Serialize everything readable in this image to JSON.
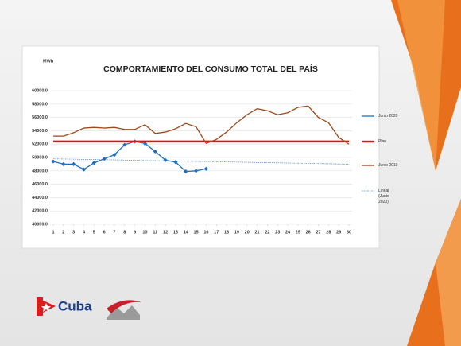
{
  "chart_data": {
    "type": "line",
    "title": "COMPORTAMIENTO DEL CONSUMO TOTAL DEL PAÍS",
    "ylabel": "MWh",
    "x": [
      1,
      2,
      3,
      4,
      5,
      6,
      7,
      8,
      9,
      10,
      11,
      12,
      13,
      14,
      15,
      16,
      17,
      18,
      19,
      20,
      21,
      22,
      23,
      24,
      25,
      26,
      27,
      28,
      29,
      30
    ],
    "xlim": [
      1,
      30
    ],
    "xticks": [
      1,
      2,
      3,
      4,
      5,
      6,
      7,
      8,
      9,
      10,
      11,
      12,
      13,
      14,
      15,
      16,
      17,
      18,
      19,
      20,
      21,
      22,
      23,
      24,
      25,
      26,
      27,
      28,
      29,
      30
    ],
    "ylim": [
      40000,
      60000
    ],
    "yticks": [
      {
        "value": 40000,
        "label": "40000,0"
      },
      {
        "value": 42000,
        "label": "42000,0"
      },
      {
        "value": 44000,
        "label": "44000,0"
      },
      {
        "value": 46000,
        "label": "46000,0"
      },
      {
        "value": 48000,
        "label": "48000,0"
      },
      {
        "value": 50000,
        "label": "50000,0"
      },
      {
        "value": 52000,
        "label": "52000,0"
      },
      {
        "value": 54000,
        "label": "54000,0"
      },
      {
        "value": 56000,
        "label": "56000,0"
      },
      {
        "value": 58000,
        "label": "58000,0"
      },
      {
        "value": 60000,
        "label": "60000,0"
      }
    ],
    "grid": true,
    "legend": "right",
    "series": [
      {
        "name": "Junio 2020",
        "color": "#1f6fc0",
        "markers": true,
        "values": [
          49400,
          49000,
          49000,
          48200,
          49200,
          49800,
          50400,
          51900,
          52400,
          52100,
          50900,
          49600,
          49300,
          47900,
          48000,
          48300,
          null,
          null,
          null,
          null,
          null,
          null,
          null,
          null,
          null,
          null,
          null,
          null,
          null,
          null
        ]
      },
      {
        "name": "Plan",
        "color": "#e0140f",
        "values": [
          52400,
          52400,
          52400,
          52400,
          52400,
          52400,
          52400,
          52400,
          52400,
          52400,
          52400,
          52400,
          52400,
          52400,
          52400,
          52400,
          52400,
          52400,
          52400,
          52400,
          52400,
          52400,
          52400,
          52400,
          52400,
          52400,
          52400,
          52400,
          52400,
          52400
        ]
      },
      {
        "name": "Junio 2019",
        "color": "#9c4a1a",
        "values": [
          53200,
          53200,
          53700,
          54400,
          54500,
          54400,
          54500,
          54200,
          54200,
          54900,
          53600,
          53800,
          54300,
          55100,
          54600,
          52100,
          52700,
          53800,
          55200,
          56400,
          57300,
          57000,
          56400,
          56700,
          57500,
          57700,
          56000,
          55200,
          53000,
          52000
        ]
      },
      {
        "name": "Lineal (Junio 2020)",
        "color": "#4a86c8",
        "dashed": true,
        "x": [
          1,
          30
        ],
        "values": [
          49800,
          49000
        ]
      }
    ]
  },
  "footer": {
    "brand": "Cuba"
  }
}
